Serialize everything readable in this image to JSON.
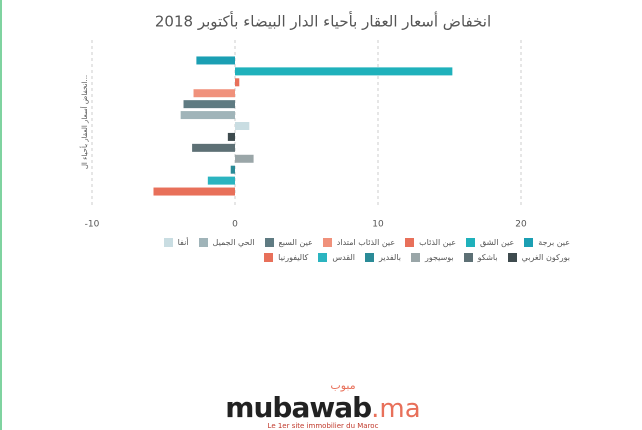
{
  "chart_data": {
    "type": "hbar",
    "title": "انخفاض أسعار العقار بأحياء الدار البيضاء بأكتوبر 2018",
    "y_label": "انخفاض أسعار العقار بأحياء ال...",
    "categories": [
      "عين برجة",
      "عين الشق",
      "عين الذئاب",
      "عين الذئاب امتداد",
      "عين السبع",
      "الحي الجميل",
      "أنفا",
      "بوركون الغربي",
      "باشكو",
      "بوسيجور",
      "بالفدير",
      "القدس",
      "كاليفورنيا"
    ],
    "values": [
      -2.7,
      15.2,
      0.3,
      -2.9,
      -3.6,
      -3.8,
      1.0,
      -0.5,
      -3.0,
      1.3,
      -0.3,
      -1.9,
      -5.7
    ],
    "colors": [
      "#1b9fb3",
      "#1fb1bb",
      "#e8705a",
      "#f0917b",
      "#5f7b82",
      "#a0b4b9",
      "#c9dde2",
      "#3e4b4e",
      "#5d7075",
      "#9aa6a8",
      "#2a8b97",
      "#2bb4c0",
      "#e8705a"
    ],
    "xlim": [
      -10,
      25
    ],
    "xticks": [
      -10,
      0,
      10,
      20
    ],
    "grid": true
  },
  "logo": {
    "arabic": "مبوب",
    "name": "mubawab",
    "suffix": ".ma",
    "tagline": "Le 1er site immobilier du Maroc"
  }
}
